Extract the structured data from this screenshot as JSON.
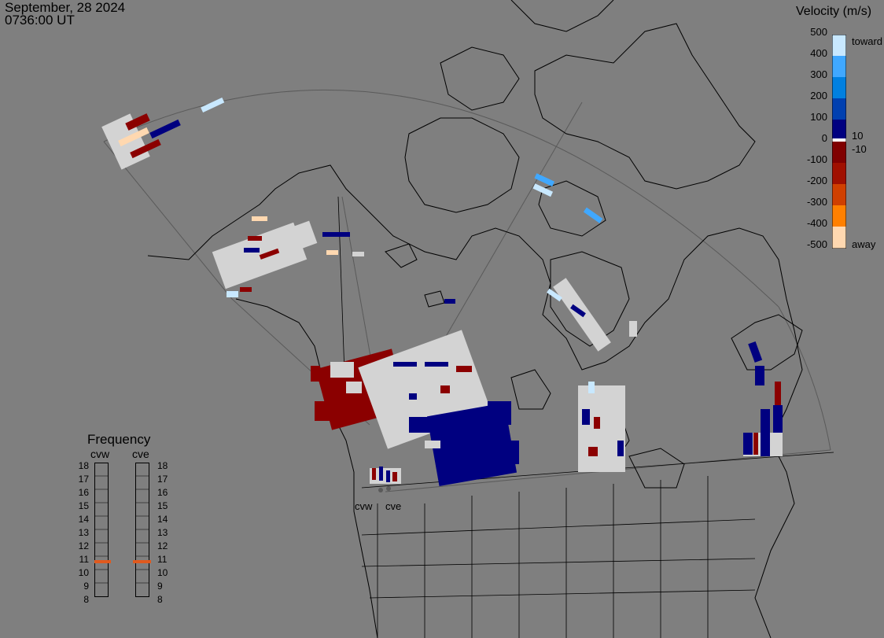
{
  "header": {
    "date": "September, 28 2024",
    "time": "0736:00 UT"
  },
  "velocity_scale": {
    "title": "Velocity (m/s)",
    "ticks": [
      "500",
      "400",
      "300",
      "200",
      "100",
      "0",
      "-100",
      "-200",
      "-300",
      "-400",
      "-500"
    ],
    "toward_label": "toward",
    "away_label": "away",
    "pos_threshold": "10",
    "neg_threshold": "-10",
    "colors": [
      "#ffd8b0",
      "#ffa050",
      "#ff8000",
      "#d04000",
      "#a01000",
      "#800000",
      "#ffffff",
      "#000080",
      "#0040b0",
      "#0080e0",
      "#40a8ff",
      "#c8e8ff"
    ]
  },
  "frequency_panel": {
    "title": "Frequency",
    "radars": [
      {
        "name": "cvw",
        "selected_mhz": 11
      },
      {
        "name": "cve",
        "selected_mhz": 11
      }
    ],
    "ticks": [
      "18",
      "17",
      "16",
      "15",
      "14",
      "13",
      "12",
      "11",
      "10",
      "9",
      "8"
    ],
    "marker_color": "#e05a1e"
  },
  "radar_labels": [
    "cvw",
    "cve"
  ],
  "map": {
    "background": "#7f7f7f",
    "land_outline": "#000000",
    "scatter_colors": {
      "ground": "#d3d3d3",
      "toward": "#000080",
      "away": "#8b0000"
    }
  }
}
